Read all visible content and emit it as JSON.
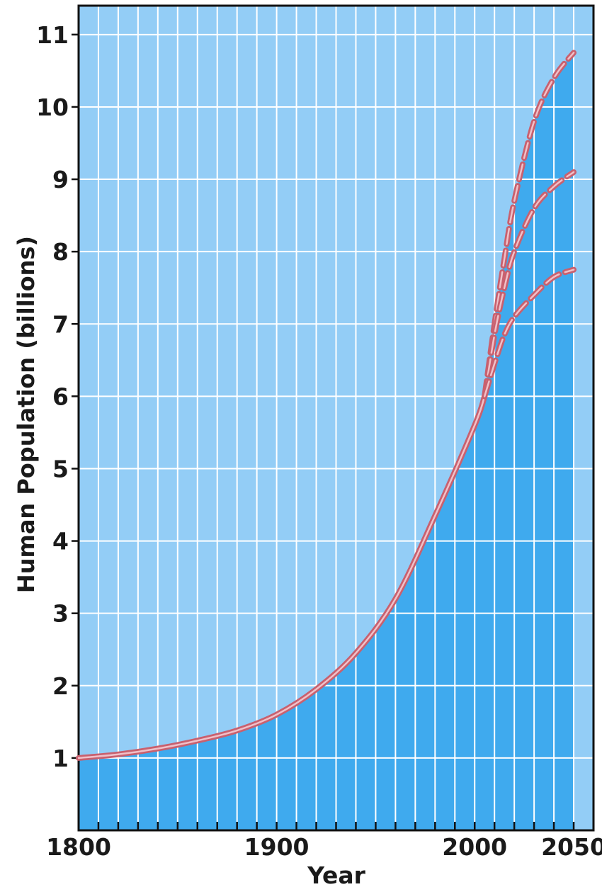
{
  "chart_data": {
    "type": "line",
    "title": "",
    "xlabel": "Year",
    "ylabel": "Human Population (billions)",
    "xlim": [
      1800,
      2060
    ],
    "ylim": [
      0,
      11.4
    ],
    "x_ticks_labeled": [
      1800,
      1900,
      2000,
      2050
    ],
    "y_ticks_labeled": [
      1,
      2,
      3,
      4,
      5,
      6,
      7,
      8,
      9,
      10,
      11
    ],
    "grid": true,
    "area_fill": "below upper projection",
    "colors": {
      "plot_background": "#93cdf6",
      "area_fill": "#3faaee",
      "grid": "#ffffff",
      "line": "#c9606e",
      "line_core": "#f0c0c8"
    },
    "series": [
      {
        "style": "solid",
        "points": [
          [
            1800,
            1.0
          ],
          [
            1820,
            1.05
          ],
          [
            1840,
            1.13
          ],
          [
            1860,
            1.24
          ],
          [
            1880,
            1.38
          ],
          [
            1900,
            1.6
          ],
          [
            1920,
            1.95
          ],
          [
            1940,
            2.45
          ],
          [
            1960,
            3.2
          ],
          [
            1980,
            4.35
          ],
          [
            2000,
            5.6
          ],
          [
            2005,
            6.0
          ]
        ]
      },
      {
        "style": "dashed",
        "points": [
          [
            2005,
            6.0
          ],
          [
            2010,
            7.0
          ],
          [
            2015,
            7.9
          ],
          [
            2020,
            8.7
          ],
          [
            2030,
            9.8
          ],
          [
            2040,
            10.4
          ],
          [
            2050,
            10.75
          ]
        ]
      },
      {
        "style": "dashed",
        "points": [
          [
            2005,
            6.0
          ],
          [
            2010,
            6.85
          ],
          [
            2015,
            7.5
          ],
          [
            2020,
            8.0
          ],
          [
            2030,
            8.6
          ],
          [
            2040,
            8.9
          ],
          [
            2050,
            9.1
          ]
        ]
      },
      {
        "style": "dashed",
        "points": [
          [
            2005,
            6.0
          ],
          [
            2010,
            6.45
          ],
          [
            2015,
            6.85
          ],
          [
            2020,
            7.1
          ],
          [
            2030,
            7.4
          ],
          [
            2040,
            7.65
          ],
          [
            2050,
            7.75
          ]
        ]
      }
    ]
  }
}
